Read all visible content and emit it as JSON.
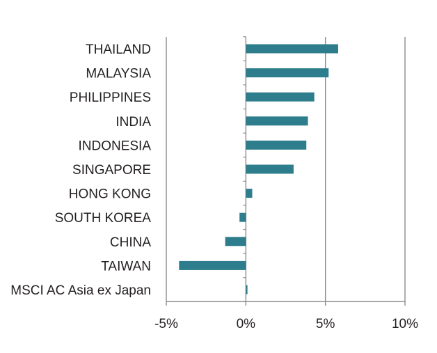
{
  "chart_data": {
    "type": "bar",
    "orientation": "horizontal",
    "categories": [
      "THAILAND",
      "MALAYSIA",
      "PHILIPPINES",
      "INDIA",
      "INDONESIA",
      "SINGAPORE",
      "HONG KONG",
      "SOUTH KOREA",
      "CHINA",
      "TAIWAN",
      "MSCI AC Asia ex Japan"
    ],
    "series": [
      {
        "values": [
          5.8,
          5.2,
          4.3,
          3.9,
          3.8,
          3.0,
          0.4,
          -0.4,
          -1.3,
          -4.2,
          0.1
        ]
      }
    ],
    "xlim": [
      -5,
      10
    ],
    "xticks": [
      -5,
      0,
      5,
      10
    ],
    "xtick_labels": [
      "-5%",
      "0%",
      "5%",
      "10%"
    ],
    "title": "",
    "xlabel": "",
    "ylabel": "",
    "grid": "vertical",
    "legend": "none",
    "colors": {
      "bar": "#2d7d8c",
      "grid": "#8c8c8c",
      "text": "#231f20"
    }
  }
}
